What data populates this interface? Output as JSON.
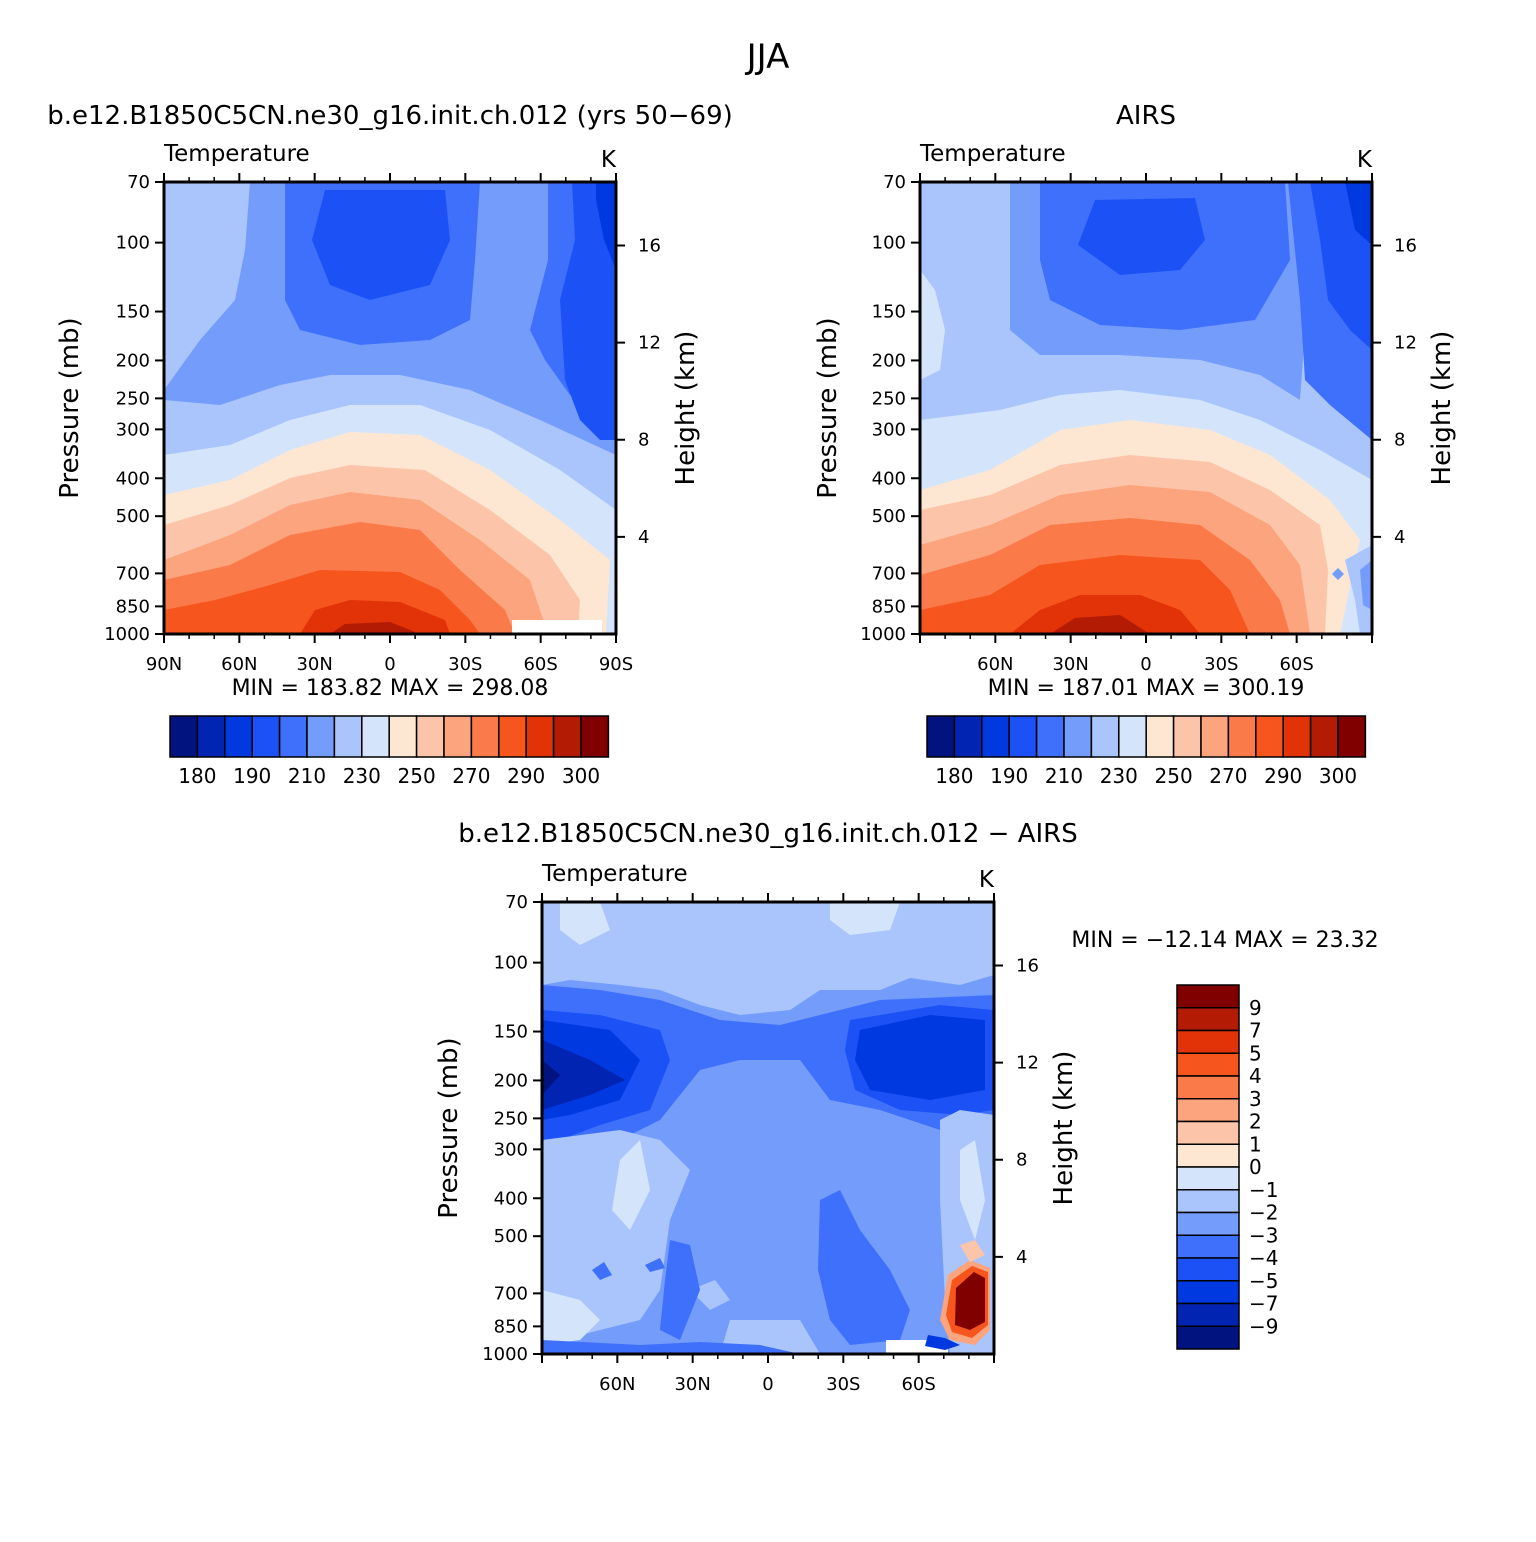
{
  "figure_title": "JJA",
  "chart_data": [
    {
      "type": "heatmap",
      "title": "b.e12.B1850C5CN.ne30_g16.init.ch.012 (yrs 50−69)",
      "subtitle_left": "Temperature",
      "subtitle_right": "K",
      "ylabel": "Pressure (mb)",
      "ylabel_right": "Height (km)",
      "x_ticks": [
        "90N",
        "60N",
        "30N",
        "0",
        "30S",
        "60S",
        "90S"
      ],
      "y_ticks": [
        "70",
        "100",
        "150",
        "200",
        "250",
        "300",
        "400",
        "500",
        "700",
        "850",
        "1000"
      ],
      "y_ticks_right": [
        "16",
        "12",
        "8",
        "4"
      ],
      "min_max_label": "MIN =  183.82   MAX =  298.08",
      "min": 183.82,
      "max": 298.08,
      "colorbar_labels": [
        "180",
        "190",
        "210",
        "230",
        "250",
        "270",
        "290",
        "300"
      ]
    },
    {
      "type": "heatmap",
      "title": "AIRS",
      "subtitle_left": "Temperature",
      "subtitle_right": "K",
      "ylabel": "Pressure (mb)",
      "ylabel_right": "Height (km)",
      "x_ticks": [
        "",
        "60N",
        "30N",
        "0",
        "30S",
        "60S",
        ""
      ],
      "y_ticks": [
        "70",
        "100",
        "150",
        "200",
        "250",
        "300",
        "400",
        "500",
        "700",
        "850",
        "1000"
      ],
      "y_ticks_right": [
        "16",
        "12",
        "8",
        "4"
      ],
      "min_max_label": "MIN =  187.01   MAX =  300.19",
      "min": 187.01,
      "max": 300.19,
      "colorbar_labels": [
        "180",
        "190",
        "210",
        "230",
        "250",
        "270",
        "290",
        "300"
      ]
    },
    {
      "type": "heatmap",
      "title": "b.e12.B1850C5CN.ne30_g16.init.ch.012 − AIRS",
      "subtitle_left": "Temperature",
      "subtitle_right": "K",
      "ylabel": "Pressure (mb)",
      "ylabel_right": "Height (km)",
      "x_ticks": [
        "",
        "60N",
        "30N",
        "0",
        "30S",
        "60S",
        ""
      ],
      "y_ticks": [
        "70",
        "100",
        "150",
        "200",
        "250",
        "300",
        "400",
        "500",
        "700",
        "850",
        "1000"
      ],
      "y_ticks_right": [
        "16",
        "12",
        "8",
        "4"
      ],
      "min_max_label": "MIN = −12.14   MAX =   23.32",
      "min": -12.14,
      "max": 23.32,
      "colorbar_labels": [
        "9",
        "7",
        "5",
        "4",
        "3",
        "2",
        "1",
        "0",
        "−1",
        "−2",
        "−3",
        "−4",
        "−5",
        "−7",
        "−9"
      ]
    }
  ],
  "colors": {
    "palette": [
      "#00137f",
      "#0124b3",
      "#0039e0",
      "#1c52f5",
      "#3f70fb",
      "#749cfb",
      "#a9c5fc",
      "#d4e5fb",
      "#fde7d3",
      "#fcc5a9",
      "#fca47e",
      "#fb7a4a",
      "#f6561e",
      "#e13208",
      "#b31b05",
      "#800000"
    ],
    "frame": "#000000"
  }
}
